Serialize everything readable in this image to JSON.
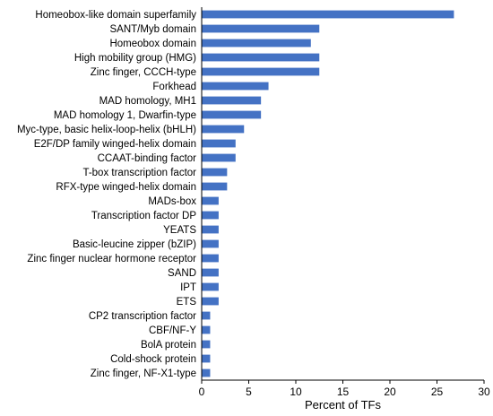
{
  "chart_data": {
    "type": "bar",
    "orientation": "horizontal",
    "title": "",
    "xlabel": "Percent of TFs",
    "ylabel": "",
    "xlim": [
      0,
      30
    ],
    "xticks": [
      0,
      5,
      10,
      15,
      20,
      25,
      30
    ],
    "grid": false,
    "legend": "none",
    "bar_color": "#4472C4",
    "categories": [
      "Homeobox-like domain superfamily",
      "SANT/Myb domain",
      "Homeobox domain",
      "High mobility group (HMG)",
      "Zinc finger, CCCH-type",
      "Forkhead",
      "MAD homology, MH1",
      "MAD homology 1, Dwarfin-type",
      "Myc-type, basic helix-loop-helix (bHLH)",
      "E2F/DP family winged-helix domain",
      "CCAAT-binding factor",
      "T-box transcription factor",
      "RFX-type winged-helix domain",
      "MADs-box",
      "Transcription factor DP",
      "YEATS",
      "Basic-leucine zipper (bZIP)",
      "Zinc finger nuclear hormone receptor",
      "SAND",
      "IPT",
      "ETS",
      "CP2 transcription factor",
      "CBF/NF-Y",
      "BolA protein",
      "Cold-shock protein",
      "Zinc finger, NF-X1-type"
    ],
    "values": [
      26.8,
      12.5,
      11.6,
      12.5,
      12.5,
      7.1,
      6.3,
      6.3,
      4.5,
      3.6,
      3.6,
      2.7,
      2.7,
      1.8,
      1.8,
      1.8,
      1.8,
      1.8,
      1.8,
      1.8,
      1.8,
      0.9,
      0.9,
      0.9,
      0.9,
      0.9
    ]
  }
}
